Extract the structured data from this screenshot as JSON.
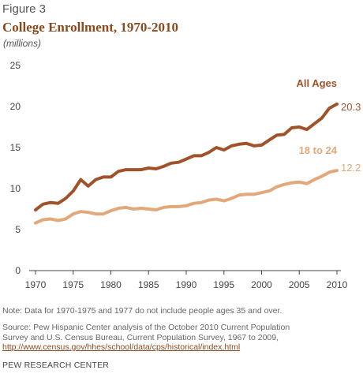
{
  "figure_label": "Figure 3",
  "title": "College Enrollment, 1970-2010",
  "subtitle": "(millions)",
  "note": "Note: Data for 1970-1975 and 1977 do not include people ages 35 and over.",
  "source_line1": "Source: Pew Hispanic Center analysis of the October 2010 Current Population",
  "source_line2": "Survey and U.S. Census Bureau, Current Population Survey, 1967 to 2009,",
  "source_link": "http://www.census.gov/hhes/school/data/cps/historical/index.html",
  "organization": "PEW RESEARCH CENTER",
  "chart_data": {
    "type": "line",
    "xlim": [
      1970,
      2010
    ],
    "ylim": [
      0,
      25
    ],
    "x_ticks": [
      1970,
      1975,
      1980,
      1985,
      1990,
      1995,
      2000,
      2005,
      2010
    ],
    "y_ticks": [
      0,
      5,
      10,
      15,
      20,
      25
    ],
    "grid": false,
    "x": [
      1970,
      1971,
      1972,
      1973,
      1974,
      1975,
      1976,
      1977,
      1978,
      1979,
      1980,
      1981,
      1982,
      1983,
      1984,
      1985,
      1986,
      1987,
      1988,
      1989,
      1990,
      1991,
      1992,
      1993,
      1994,
      1995,
      1996,
      1997,
      1998,
      1999,
      2000,
      2001,
      2002,
      2003,
      2004,
      2005,
      2006,
      2007,
      2008,
      2009,
      2010
    ],
    "series": [
      {
        "name": "All Ages",
        "color": "#a0532a",
        "end_label": "20.3",
        "values": [
          7.4,
          8.1,
          8.3,
          8.2,
          8.8,
          9.7,
          11.1,
          10.3,
          11.1,
          11.4,
          11.4,
          12.1,
          12.3,
          12.3,
          12.3,
          12.5,
          12.4,
          12.7,
          13.1,
          13.2,
          13.6,
          14.0,
          14.0,
          14.4,
          15.0,
          14.7,
          15.2,
          15.4,
          15.5,
          15.2,
          15.3,
          15.9,
          16.5,
          16.6,
          17.4,
          17.5,
          17.2,
          17.9,
          18.6,
          19.8,
          20.3
        ]
      },
      {
        "name": "18 to 24",
        "color": "#e3a87a",
        "end_label": "12.2",
        "values": [
          5.8,
          6.2,
          6.3,
          6.1,
          6.3,
          6.9,
          7.2,
          7.1,
          6.9,
          6.9,
          7.3,
          7.6,
          7.7,
          7.5,
          7.6,
          7.5,
          7.4,
          7.7,
          7.8,
          7.8,
          7.9,
          8.2,
          8.3,
          8.6,
          8.7,
          8.5,
          8.8,
          9.2,
          9.3,
          9.3,
          9.5,
          9.7,
          10.2,
          10.5,
          10.7,
          10.8,
          10.6,
          11.1,
          11.5,
          12.0,
          12.2
        ]
      }
    ]
  }
}
